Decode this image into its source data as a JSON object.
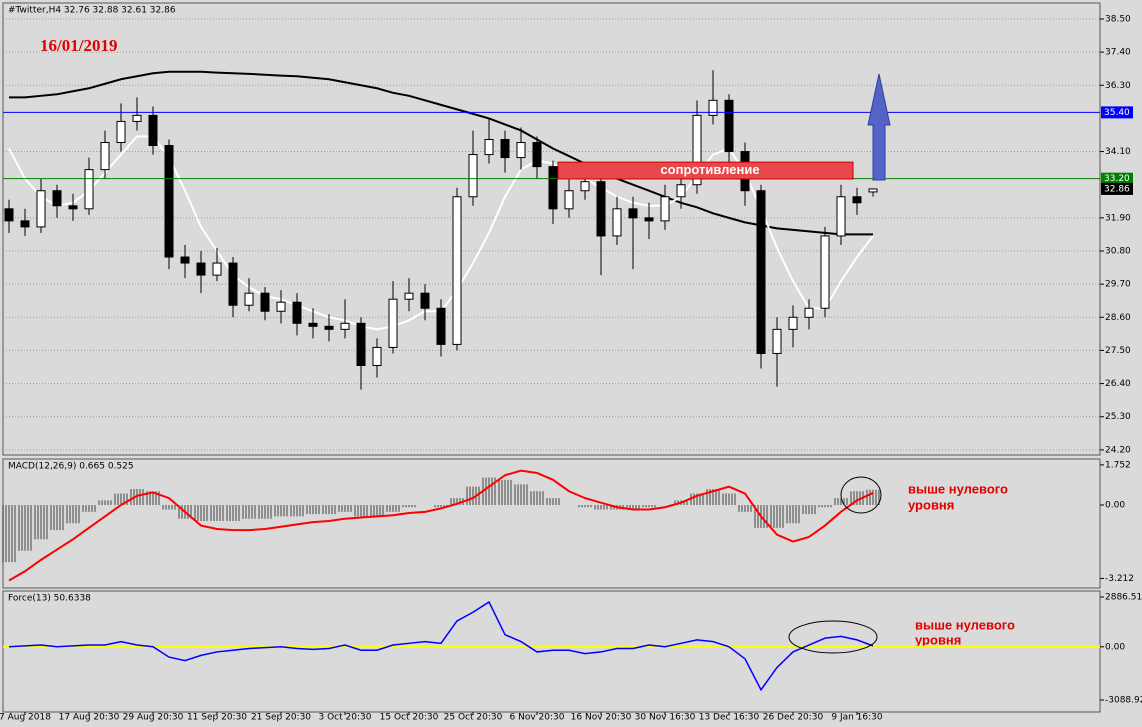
{
  "chart_data": [
    {
      "type": "candlestick",
      "title": "#Twitter,H4  32.76 32.88 32.61 32.86",
      "annotations": [
        "16/01/2019",
        "сопротивление"
      ],
      "resistance_zone": [
        33.19,
        33.75
      ],
      "categories": [
        null,
        "7 Aug 2018",
        null,
        null,
        null,
        "17 Aug 20:30",
        null,
        null,
        null,
        "29 Aug 20:30",
        null,
        null,
        null,
        "11 Sep 20:30",
        null,
        null,
        null,
        "21 Sep 20:30",
        null,
        null,
        null,
        "3 Oct 20:30",
        null,
        null,
        null,
        "15 Oct 20:30",
        null,
        null,
        null,
        "25 Oct 20:30",
        null,
        null,
        null,
        "6 Nov 20:30",
        null,
        null,
        null,
        "16 Nov 20:30",
        null,
        null,
        null,
        "30 Nov 16:30",
        null,
        null,
        null,
        "13 Dec 16:30",
        null,
        null,
        null,
        "26 Dec 20:30",
        null,
        null,
        null,
        "9 Jan 16:30",
        null
      ],
      "open": [
        32.2,
        31.8,
        31.6,
        32.8,
        32.3,
        32.2,
        33.5,
        34.4,
        35.1,
        35.3,
        34.3,
        30.6,
        30.4,
        30.0,
        30.4,
        29.0,
        29.4,
        28.8,
        29.1,
        28.4,
        28.3,
        28.2,
        28.4,
        27.0,
        27.6,
        29.2,
        29.4,
        28.9,
        27.7,
        32.6,
        34.0,
        34.5,
        33.9,
        34.4,
        33.6,
        32.2,
        32.8,
        33.1,
        31.3,
        32.2,
        31.9,
        31.8,
        32.6,
        33.0,
        35.3,
        35.8,
        34.1,
        32.8,
        27.4,
        28.2,
        28.6,
        28.9,
        31.3,
        32.6,
        32.76
      ],
      "high": [
        32.5,
        32.2,
        33.2,
        33.0,
        32.7,
        33.9,
        34.8,
        35.7,
        35.9,
        35.6,
        34.5,
        31.0,
        30.8,
        30.9,
        30.6,
        29.9,
        29.6,
        29.5,
        29.4,
        28.9,
        28.7,
        29.2,
        28.6,
        27.9,
        29.8,
        29.9,
        29.7,
        29.2,
        32.9,
        34.8,
        35.2,
        34.8,
        34.9,
        34.6,
        33.8,
        33.2,
        33.7,
        33.3,
        32.6,
        32.6,
        32.4,
        33.0,
        33.5,
        35.8,
        36.8,
        36.0,
        34.4,
        33.0,
        28.6,
        29.0,
        29.2,
        31.6,
        33.0,
        32.9,
        32.88
      ],
      "low": [
        31.4,
        31.3,
        31.4,
        31.9,
        31.8,
        32.0,
        33.2,
        34.1,
        34.8,
        34.0,
        30.2,
        29.9,
        29.4,
        29.8,
        28.6,
        28.8,
        28.5,
        28.4,
        28.0,
        27.9,
        27.8,
        27.9,
        26.2,
        26.6,
        27.4,
        28.8,
        28.5,
        27.3,
        27.5,
        32.3,
        33.7,
        33.4,
        33.5,
        33.2,
        31.7,
        31.9,
        32.5,
        30.0,
        31.0,
        30.2,
        31.2,
        31.5,
        32.2,
        32.7,
        35.0,
        33.7,
        32.3,
        26.9,
        26.3,
        27.6,
        28.2,
        28.6,
        31.0,
        32.0,
        32.61
      ],
      "close": [
        31.8,
        31.6,
        32.8,
        32.3,
        32.2,
        33.5,
        34.4,
        35.1,
        35.3,
        34.3,
        30.6,
        30.4,
        30.0,
        30.4,
        29.0,
        29.4,
        28.8,
        29.1,
        28.4,
        28.3,
        28.2,
        28.4,
        27.0,
        27.6,
        29.2,
        29.4,
        28.9,
        27.7,
        32.6,
        34.0,
        34.5,
        33.9,
        34.4,
        33.6,
        32.2,
        32.8,
        33.1,
        31.3,
        32.2,
        31.9,
        31.8,
        32.6,
        33.0,
        35.3,
        35.8,
        34.1,
        32.8,
        27.4,
        28.2,
        28.6,
        28.9,
        31.3,
        32.6,
        32.4,
        32.86
      ],
      "series": [
        {
          "color": "#000000",
          "values": [
            35.9,
            35.9,
            35.95,
            36.0,
            36.1,
            36.2,
            36.35,
            36.5,
            36.6,
            36.7,
            36.75,
            36.75,
            36.75,
            36.72,
            36.7,
            36.68,
            36.65,
            36.62,
            36.6,
            36.55,
            36.5,
            36.4,
            36.3,
            36.2,
            36.05,
            35.95,
            35.8,
            35.65,
            35.5,
            35.35,
            35.2,
            35.0,
            34.8,
            34.5,
            34.2,
            33.95,
            33.7,
            33.45,
            33.2,
            33.0,
            32.8,
            32.6,
            32.4,
            32.25,
            32.05,
            31.9,
            31.75,
            31.65,
            31.55,
            31.5,
            31.45,
            31.4,
            31.35,
            31.35,
            31.35
          ]
        },
        {
          "color": "#ffffff",
          "values": [
            34.2,
            33.2,
            32.6,
            32.3,
            32.4,
            32.8,
            33.4,
            34.0,
            34.6,
            34.6,
            33.9,
            32.8,
            31.6,
            30.8,
            30.0,
            29.6,
            29.3,
            29.2,
            29.0,
            28.8,
            28.6,
            28.5,
            28.3,
            28.2,
            28.3,
            28.5,
            28.8,
            28.8,
            29.5,
            30.4,
            31.4,
            32.6,
            33.5,
            33.8,
            33.7,
            33.4,
            33.2,
            32.9,
            32.6,
            32.4,
            32.3,
            32.3,
            32.6,
            33.3,
            34.0,
            34.2,
            33.4,
            32.2,
            30.9,
            29.8,
            28.9,
            28.9,
            29.8,
            30.6,
            31.3
          ]
        }
      ],
      "levels": [
        {
          "value": 35.4,
          "label": "35.40",
          "color": "#0000ff"
        },
        {
          "value": 33.2,
          "label": "33.20",
          "color": "#008000"
        }
      ],
      "last_price": {
        "value": 32.86,
        "label": "32.86"
      },
      "ylim": [
        24.03,
        39.03
      ],
      "yticks": [
        {
          "value": 24.2,
          "label": "24.20"
        },
        {
          "value": 25.3,
          "label": "25.30"
        },
        {
          "value": 26.4,
          "label": "26.40"
        },
        {
          "value": 27.5,
          "label": "27.50"
        },
        {
          "value": 28.6,
          "label": "28.60"
        },
        {
          "value": 29.7,
          "label": "29.70"
        },
        {
          "value": 30.8,
          "label": "30.80"
        },
        {
          "value": 31.9,
          "label": "31.90"
        },
        {
          "value": 34.1,
          "label": "34.10"
        },
        {
          "value": 36.3,
          "label": "36.30"
        },
        {
          "value": 37.4,
          "label": "37.40"
        },
        {
          "value": 38.5,
          "label": "38.50"
        }
      ],
      "grid": true
    },
    {
      "type": "macd",
      "title": "MACD(12,26,9) 0.665 0.525",
      "annotations": [
        "выше нулевого",
        "уровня"
      ],
      "series": [
        {
          "type": "bar",
          "color": "#000000",
          "values": [
            -2.5,
            -2.0,
            -1.5,
            -1.1,
            -0.8,
            -0.3,
            0.2,
            0.5,
            0.7,
            0.6,
            -0.2,
            -0.6,
            -0.7,
            -0.7,
            -0.7,
            -0.6,
            -0.6,
            -0.5,
            -0.5,
            -0.4,
            -0.4,
            -0.3,
            -0.5,
            -0.5,
            -0.3,
            -0.1,
            0.0,
            -0.1,
            0.3,
            0.8,
            1.2,
            1.1,
            0.9,
            0.6,
            0.3,
            0.0,
            -0.1,
            -0.2,
            -0.2,
            -0.2,
            -0.1,
            0.0,
            0.2,
            0.5,
            0.7,
            0.5,
            -0.3,
            -1.0,
            -1.0,
            -0.8,
            -0.4,
            -0.1,
            0.3,
            0.6,
            0.665
          ]
        },
        {
          "type": "line",
          "color": "#ff0000",
          "values": [
            -3.3,
            -2.9,
            -2.4,
            -1.95,
            -1.5,
            -1.0,
            -0.5,
            0.0,
            0.4,
            0.55,
            0.3,
            -0.3,
            -0.9,
            -1.05,
            -1.1,
            -1.1,
            -1.05,
            -0.95,
            -0.85,
            -0.75,
            -0.7,
            -0.6,
            -0.55,
            -0.5,
            -0.45,
            -0.35,
            -0.3,
            -0.15,
            0.05,
            0.3,
            0.8,
            1.3,
            1.5,
            1.4,
            1.1,
            0.6,
            0.3,
            0.1,
            -0.1,
            -0.2,
            -0.2,
            -0.1,
            0.1,
            0.4,
            0.6,
            0.8,
            0.5,
            -0.5,
            -1.3,
            -1.6,
            -1.4,
            -0.9,
            -0.3,
            0.2,
            0.525
          ]
        }
      ],
      "ylim": [
        -3.63,
        2.01
      ],
      "yticks": [
        -3.212,
        {
          "value": 0,
          "label": "0.00"
        },
        1.752
      ]
    },
    {
      "type": "line",
      "title": "Force(13) 50.6338",
      "annotations": [
        "выше нулевого",
        "уровня"
      ],
      "color": "#0000ff",
      "zero_line_color": "#ffff00",
      "values": [
        0,
        50,
        100,
        0,
        50,
        100,
        100,
        300,
        100,
        0,
        -600,
        -800,
        -500,
        -300,
        -200,
        -100,
        -50,
        0,
        -100,
        -150,
        -100,
        100,
        -200,
        -200,
        100,
        200,
        300,
        200,
        1500,
        2000,
        2600,
        700,
        300,
        -300,
        -200,
        -200,
        -400,
        -300,
        -100,
        -100,
        100,
        0,
        200,
        400,
        300,
        0,
        -700,
        -2500,
        -1200,
        -300,
        100,
        500,
        600,
        400,
        50.6338
      ],
      "ylim": [
        -3785,
        3235
      ],
      "yticks": [
        {
          "value": -3088.92,
          "label": "-3088.92"
        },
        {
          "value": 0,
          "label": "0.00"
        },
        {
          "value": 2886.51,
          "label": "2886.510"
        }
      ]
    }
  ]
}
